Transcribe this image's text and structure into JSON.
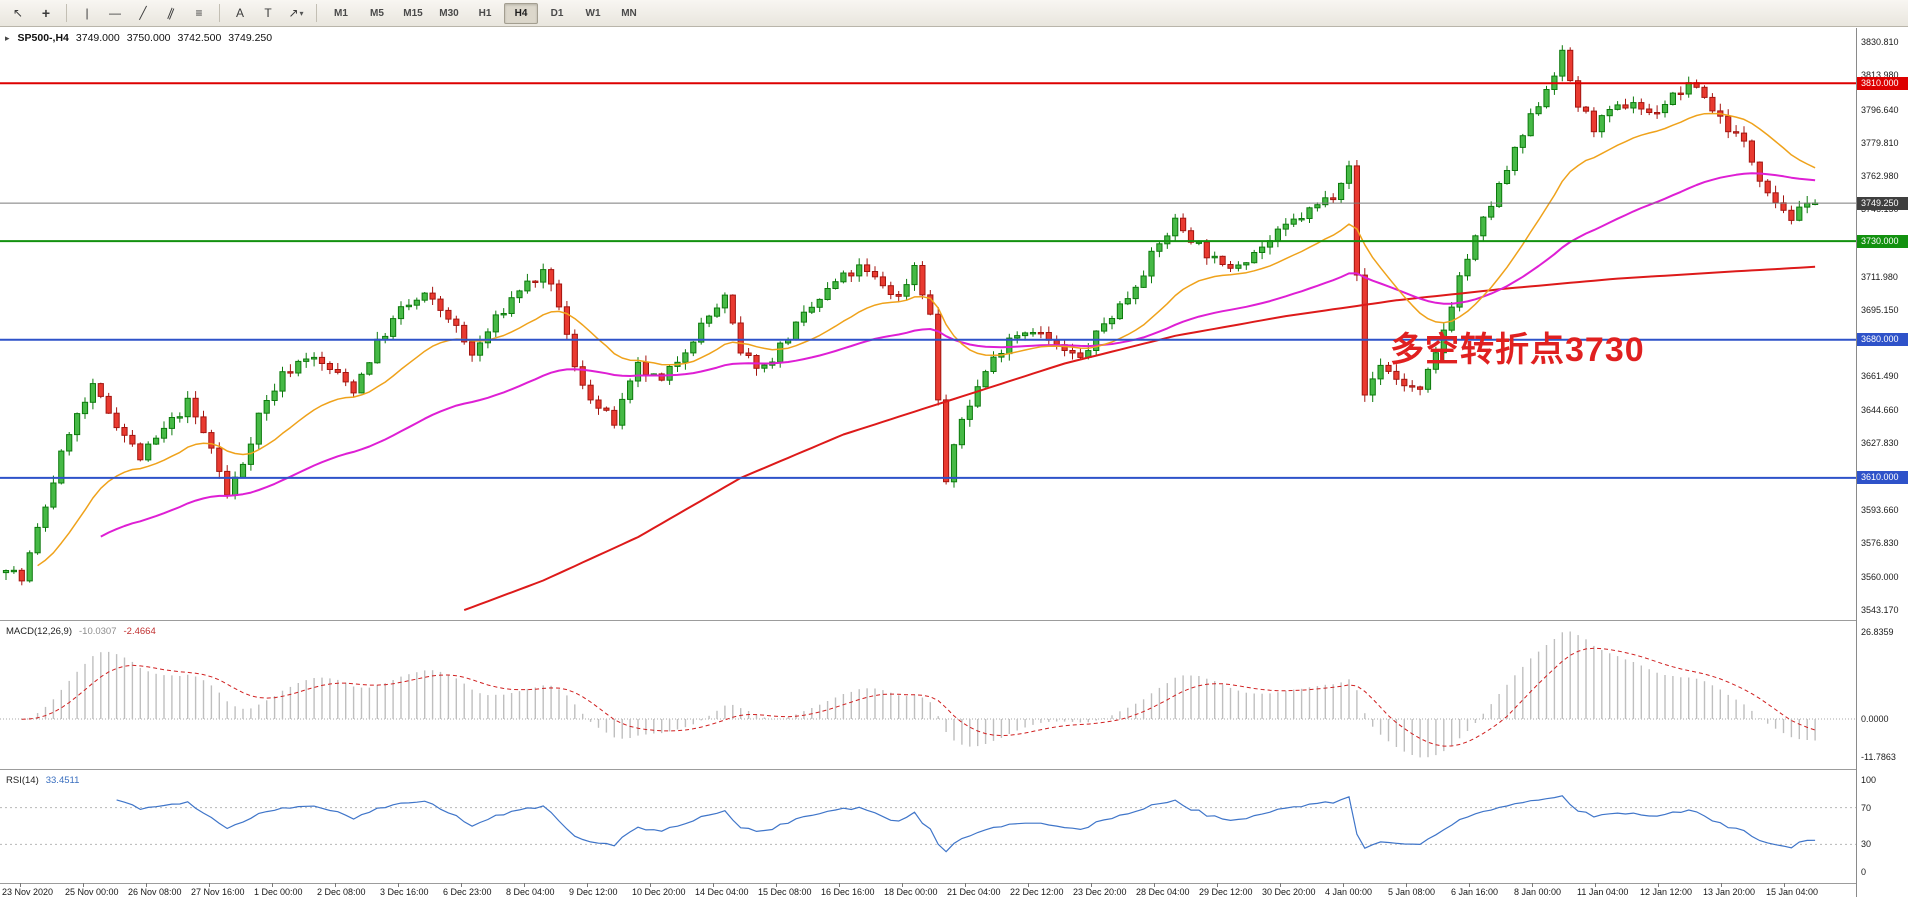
{
  "app": {
    "background": "#ffffff"
  },
  "toolbar": {
    "tools": [
      {
        "name": "cursor",
        "glyph": "↖"
      },
      {
        "name": "crosshair",
        "glyph": "+"
      },
      {
        "name": "vertical-line",
        "glyph": "|"
      },
      {
        "name": "horizontal-line",
        "glyph": "—"
      },
      {
        "name": "trendline",
        "glyph": "╱"
      },
      {
        "name": "equidistant-channel",
        "glyph": "∥"
      },
      {
        "name": "fibonacci-retracement",
        "glyph": "≡"
      },
      {
        "name": "text",
        "glyph": "A"
      },
      {
        "name": "text-label",
        "glyph": "T"
      },
      {
        "name": "arrows",
        "glyph": "↗",
        "caret": "▾"
      }
    ],
    "timeframes": [
      "M1",
      "M5",
      "M15",
      "M30",
      "H1",
      "H4",
      "D1",
      "W1",
      "MN"
    ],
    "active_timeframe": "H4"
  },
  "header": {
    "symbol_period": "SP500-,H4",
    "open": "3749.000",
    "high": "3750.000",
    "low": "3742.500",
    "close": "3749.250"
  },
  "annotation": {
    "text": "多空转折点3730",
    "color": "#e02020"
  },
  "chart_data": {
    "type": "candlestick",
    "symbol": "SP500-",
    "timeframe": "H4",
    "bars": 230,
    "last_price": 3749.25,
    "y_range": [
      3538,
      3838
    ],
    "price_axis_ticks": [
      "3830.810",
      "3813.980",
      "3796.640",
      "3779.810",
      "3762.980",
      "3746.150",
      "3729.320",
      "3711.980",
      "3695.150",
      "3678.320",
      "3661.490",
      "3644.660",
      "3627.830",
      "3610.490",
      "3593.660",
      "3576.830",
      "3560.000",
      "3543.170"
    ],
    "horizontal_lines": [
      {
        "price": 3810.0,
        "label": "3810.000",
        "color": "#dd0000"
      },
      {
        "price": 3730.0,
        "label": "3730.000",
        "color": "#12910f"
      },
      {
        "price": 3680.0,
        "label": "3680.000",
        "color": "#2e52c9"
      },
      {
        "price": 3610.0,
        "label": "3610.000",
        "color": "#2e52c9"
      }
    ],
    "current_price": {
      "value": 3749.25,
      "label": "3749.250",
      "line_color": "#7a7a7a",
      "label_bg": "#3f3f3f"
    },
    "candle_colors": {
      "up_fill": "#46b946",
      "up_border": "#0d7a0d",
      "down_fill": "#e93a30",
      "down_border": "#a31510"
    },
    "moving_averages": [
      {
        "name": "fast",
        "type": "ema",
        "period": 20,
        "color": "#efa21b"
      },
      {
        "name": "medium",
        "type": "ema",
        "period": 60,
        "color": "#de1fd4"
      },
      {
        "name": "slow",
        "type": "path",
        "color": "#dd1a1a",
        "path": [
          [
            58,
            3543
          ],
          [
            68,
            3558
          ],
          [
            80,
            3580
          ],
          [
            93,
            3610
          ],
          [
            106,
            3632
          ],
          [
            120,
            3650
          ],
          [
            134,
            3668
          ],
          [
            148,
            3682
          ],
          [
            162,
            3692
          ],
          [
            176,
            3700
          ],
          [
            190,
            3706
          ],
          [
            204,
            3711
          ],
          [
            216,
            3714
          ],
          [
            229,
            3717
          ]
        ]
      }
    ],
    "price_path_note": "approximate close-price trace read from the screenshot; candles are interpolated from these anchors",
    "price_path": [
      [
        0,
        3566
      ],
      [
        2,
        3558
      ],
      [
        5,
        3596
      ],
      [
        8,
        3634
      ],
      [
        11,
        3655
      ],
      [
        14,
        3638
      ],
      [
        17,
        3620
      ],
      [
        20,
        3634
      ],
      [
        23,
        3648
      ],
      [
        26,
        3625
      ],
      [
        28,
        3601
      ],
      [
        30,
        3618
      ],
      [
        32,
        3642
      ],
      [
        35,
        3662
      ],
      [
        38,
        3672
      ],
      [
        41,
        3665
      ],
      [
        44,
        3655
      ],
      [
        47,
        3678
      ],
      [
        50,
        3695
      ],
      [
        53,
        3702
      ],
      [
        56,
        3692
      ],
      [
        59,
        3672
      ],
      [
        62,
        3690
      ],
      [
        65,
        3706
      ],
      [
        68,
        3713
      ],
      [
        70,
        3698
      ],
      [
        72,
        3665
      ],
      [
        75,
        3645
      ],
      [
        77,
        3638
      ],
      [
        80,
        3666
      ],
      [
        83,
        3658
      ],
      [
        86,
        3676
      ],
      [
        89,
        3692
      ],
      [
        91,
        3701
      ],
      [
        93,
        3672
      ],
      [
        96,
        3666
      ],
      [
        99,
        3682
      ],
      [
        102,
        3696
      ],
      [
        105,
        3709
      ],
      [
        108,
        3716
      ],
      [
        111,
        3708
      ],
      [
        113,
        3701
      ],
      [
        115,
        3718
      ],
      [
        117,
        3692
      ],
      [
        119,
        3608
      ],
      [
        121,
        3640
      ],
      [
        124,
        3664
      ],
      [
        127,
        3682
      ],
      [
        130,
        3686
      ],
      [
        133,
        3676
      ],
      [
        136,
        3670
      ],
      [
        139,
        3688
      ],
      [
        142,
        3702
      ],
      [
        145,
        3722
      ],
      [
        148,
        3740
      ],
      [
        151,
        3728
      ],
      [
        154,
        3716
      ],
      [
        157,
        3722
      ],
      [
        160,
        3730
      ],
      [
        163,
        3740
      ],
      [
        166,
        3748
      ],
      [
        168,
        3754
      ],
      [
        170,
        3770
      ],
      [
        172,
        3652
      ],
      [
        174,
        3668
      ],
      [
        176,
        3660
      ],
      [
        179,
        3653
      ],
      [
        181,
        3672
      ],
      [
        184,
        3712
      ],
      [
        187,
        3740
      ],
      [
        190,
        3766
      ],
      [
        193,
        3792
      ],
      [
        195,
        3808
      ],
      [
        197,
        3824
      ],
      [
        199,
        3799
      ],
      [
        201,
        3788
      ],
      [
        204,
        3797
      ],
      [
        206,
        3801
      ],
      [
        208,
        3794
      ],
      [
        210,
        3800
      ],
      [
        212,
        3806
      ],
      [
        214,
        3809
      ],
      [
        216,
        3797
      ],
      [
        218,
        3788
      ],
      [
        220,
        3779
      ],
      [
        222,
        3763
      ],
      [
        224,
        3751
      ],
      [
        226,
        3742
      ],
      [
        228,
        3747
      ],
      [
        229,
        3749.25
      ]
    ]
  },
  "macd": {
    "label": "MACD(12,26,9)",
    "value_main": "-10.0307",
    "value_signal": "-2.4664",
    "params": [
      12,
      26,
      9
    ],
    "axis_ticks": [
      "26.8359",
      "0.0000",
      "-11.7863"
    ],
    "max": 26.8359,
    "min": -11.7863,
    "histogram_color": "#bfbfbf",
    "signal_color": "#d02020"
  },
  "rsi": {
    "label": "RSI(14)",
    "value": "33.4511",
    "period": 14,
    "line_color": "#3f75c9",
    "levels": [
      100,
      70,
      30,
      0
    ],
    "level_lines": [
      70,
      30
    ]
  },
  "time_axis": {
    "labels": [
      "23 Nov 2020",
      "25 Nov 00:00",
      "26 Nov 08:00",
      "27 Nov 16:00",
      "1 Dec 00:00",
      "2 Dec 08:00",
      "3 Dec 16:00",
      "6 Dec 23:00",
      "8 Dec 04:00",
      "9 Dec 12:00",
      "10 Dec 20:00",
      "14 Dec 04:00",
      "15 Dec 08:00",
      "16 Dec 16:00",
      "18 Dec 00:00",
      "21 Dec 04:00",
      "22 Dec 12:00",
      "23 Dec 20:00",
      "28 Dec 04:00",
      "29 Dec 12:00",
      "30 Dec 20:00",
      "4 Jan 00:00",
      "5 Jan 08:00",
      "6 Jan 16:00",
      "8 Jan 00:00",
      "11 Jan 04:00",
      "12 Jan 12:00",
      "13 Jan 20:00",
      "15 Jan 04:00"
    ]
  }
}
